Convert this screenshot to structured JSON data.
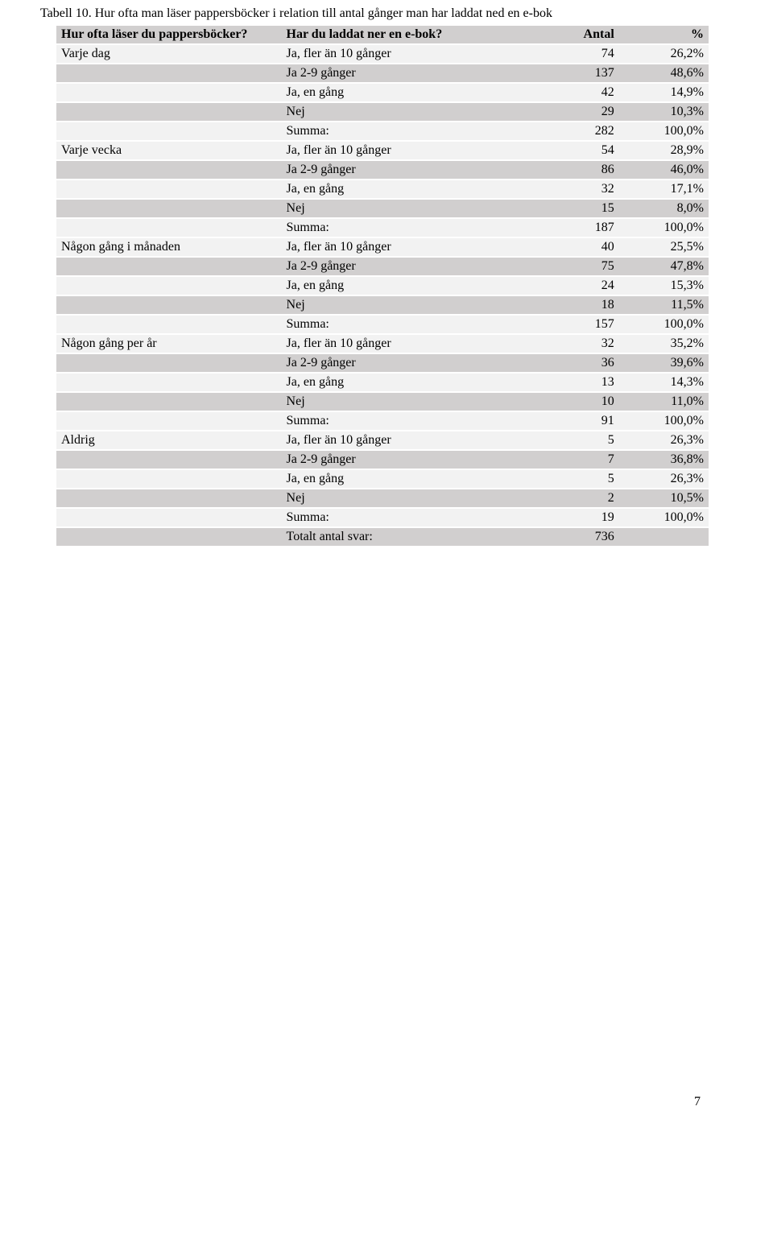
{
  "caption": "Tabell 10. Hur ofta man läser pappersböcker i relation till antal gånger man har laddat ned en e-bok",
  "header": {
    "col1": "Hur ofta läser du pappersböcker?",
    "col2": "Har du laddat ner en e-bok?",
    "col3": "Antal",
    "col4": "%"
  },
  "groups": [
    {
      "label": "Varje dag",
      "rows": [
        {
          "desc": "Ja, fler än 10 gånger",
          "count": "74",
          "pct": "26,2%"
        },
        {
          "desc": "Ja 2-9 gånger",
          "count": "137",
          "pct": "48,6%"
        },
        {
          "desc": "Ja, en gång",
          "count": "42",
          "pct": "14,9%"
        },
        {
          "desc": "Nej",
          "count": "29",
          "pct": "10,3%"
        },
        {
          "desc": "Summa:",
          "count": "282",
          "pct": "100,0%"
        }
      ]
    },
    {
      "label": "Varje vecka",
      "rows": [
        {
          "desc": "Ja, fler än 10 gånger",
          "count": "54",
          "pct": "28,9%"
        },
        {
          "desc": "Ja 2-9 gånger",
          "count": "86",
          "pct": "46,0%"
        },
        {
          "desc": "Ja, en gång",
          "count": "32",
          "pct": "17,1%"
        },
        {
          "desc": "Nej",
          "count": "15",
          "pct": "8,0%"
        },
        {
          "desc": "Summa:",
          "count": "187",
          "pct": "100,0%"
        }
      ]
    },
    {
      "label": "Någon gång i månaden",
      "rows": [
        {
          "desc": "Ja, fler än 10 gånger",
          "count": "40",
          "pct": "25,5%"
        },
        {
          "desc": "Ja 2-9 gånger",
          "count": "75",
          "pct": "47,8%"
        },
        {
          "desc": "Ja, en gång",
          "count": "24",
          "pct": "15,3%"
        },
        {
          "desc": "Nej",
          "count": "18",
          "pct": "11,5%"
        },
        {
          "desc": "Summa:",
          "count": "157",
          "pct": "100,0%"
        }
      ]
    },
    {
      "label": "Någon gång per år",
      "rows": [
        {
          "desc": "Ja, fler än 10 gånger",
          "count": "32",
          "pct": "35,2%"
        },
        {
          "desc": "Ja 2-9 gånger",
          "count": "36",
          "pct": "39,6%"
        },
        {
          "desc": "Ja, en gång",
          "count": "13",
          "pct": "14,3%"
        },
        {
          "desc": "Nej",
          "count": "10",
          "pct": "11,0%"
        },
        {
          "desc": "Summa:",
          "count": "91",
          "pct": "100,0%"
        }
      ]
    },
    {
      "label": "Aldrig",
      "rows": [
        {
          "desc": "Ja, fler än 10 gånger",
          "count": "5",
          "pct": "26,3%"
        },
        {
          "desc": "Ja 2-9 gånger",
          "count": "7",
          "pct": "36,8%"
        },
        {
          "desc": "Ja, en gång",
          "count": "5",
          "pct": "26,3%"
        },
        {
          "desc": "Nej",
          "count": "2",
          "pct": "10,5%"
        },
        {
          "desc": "Summa:",
          "count": "19",
          "pct": "100,0%"
        }
      ]
    }
  ],
  "total": {
    "desc": "Totalt antal svar:",
    "count": "736",
    "pct": ""
  },
  "page_number": "7"
}
